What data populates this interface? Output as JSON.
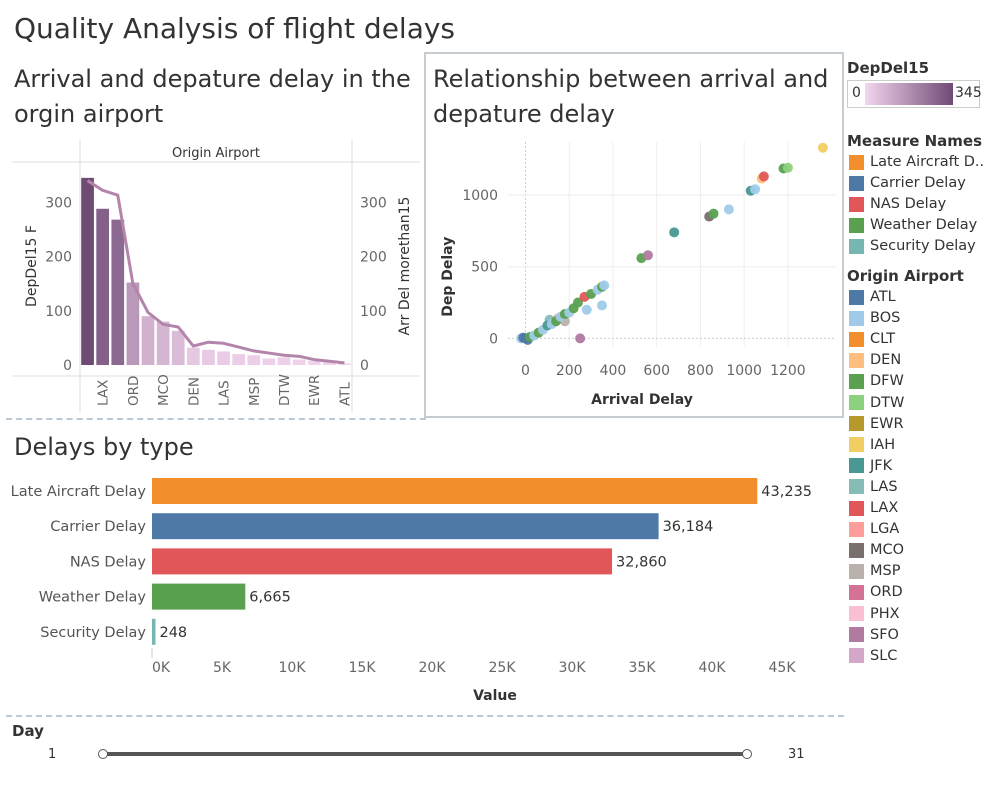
{
  "dashboard": {
    "title": "Quality Analysis of flight delays"
  },
  "worksheets": {
    "arr_dep": {
      "title": "Arrival and depature delay in the orgin airport"
    },
    "scatter": {
      "title": "Relationship between arrival and depature delay"
    },
    "types": {
      "title": "Delays by type"
    }
  },
  "legends": {
    "color_scale": {
      "title": "DepDel15",
      "min": "0",
      "max": "345",
      "colors": [
        "#f3d5ee",
        "#6f4a75"
      ]
    },
    "measure_names": {
      "title": "Measure Names",
      "items": [
        {
          "label": "Late Aircraft D..",
          "color": "#f28e2b"
        },
        {
          "label": "Carrier Delay",
          "color": "#4e79a7"
        },
        {
          "label": "NAS Delay",
          "color": "#e15759"
        },
        {
          "label": "Weather Delay",
          "color": "#59a14f"
        },
        {
          "label": "Security Delay",
          "color": "#76b7b2"
        }
      ]
    },
    "origin_airport": {
      "title": "Origin Airport",
      "items": [
        {
          "label": "ATL",
          "color": "#4e79a7"
        },
        {
          "label": "BOS",
          "color": "#a0cbe8"
        },
        {
          "label": "CLT",
          "color": "#f28e2b"
        },
        {
          "label": "DEN",
          "color": "#ffbe7d"
        },
        {
          "label": "DFW",
          "color": "#59a14f"
        },
        {
          "label": "DTW",
          "color": "#8cd17d"
        },
        {
          "label": "EWR",
          "color": "#b6992d"
        },
        {
          "label": "IAH",
          "color": "#f1ce63"
        },
        {
          "label": "JFK",
          "color": "#499894"
        },
        {
          "label": "LAS",
          "color": "#86bcb6"
        },
        {
          "label": "LAX",
          "color": "#e15759"
        },
        {
          "label": "LGA",
          "color": "#ff9d9a"
        },
        {
          "label": "MCO",
          "color": "#79706e"
        },
        {
          "label": "MSP",
          "color": "#bab0ac"
        },
        {
          "label": "ORD",
          "color": "#d37295"
        },
        {
          "label": "PHX",
          "color": "#fabfd2"
        },
        {
          "label": "SFO",
          "color": "#b07aa1"
        },
        {
          "label": "SLC",
          "color": "#d4a6c8"
        }
      ]
    }
  },
  "filter": {
    "title": "Day",
    "min": "1",
    "max": "31"
  },
  "chart_data": [
    {
      "type": "bar",
      "title": "Arrival and depature delay in the orgin airport",
      "header": "Origin Airport",
      "categories": [
        "",
        "LAX",
        "",
        "ORD",
        "",
        "MCO",
        "",
        "DEN",
        "",
        "LAS",
        "",
        "MSP",
        "",
        "DTW",
        "",
        "EWR",
        "",
        "ATL"
      ],
      "xlabels_visible": [
        "LAX",
        "ORD",
        "MCO",
        "DEN",
        "LAS",
        "MSP",
        "DTW",
        "EWR",
        "ATL"
      ],
      "series": [
        {
          "name": "DepDel15",
          "kind": "bar",
          "values": [
            345,
            288,
            268,
            152,
            90,
            80,
            63,
            32,
            28,
            25,
            20,
            18,
            12,
            14,
            10,
            8,
            6,
            3
          ]
        },
        {
          "name": "Arr Del morethan15",
          "kind": "line",
          "values": [
            340,
            322,
            313,
            150,
            97,
            75,
            70,
            35,
            42,
            40,
            33,
            26,
            22,
            18,
            16,
            10,
            7,
            4
          ]
        }
      ],
      "ylabel": "DepDel15 F",
      "y2label": "Arr Del morethan15",
      "ylim": [
        0,
        365
      ],
      "yticks": [
        0,
        100,
        200,
        300
      ],
      "grid": false
    },
    {
      "type": "scatter",
      "title": "Relationship between arrival and depature delay",
      "xlabel": "Arrival Delay",
      "ylabel": "Dep Delay",
      "xlim": [
        -80,
        1420
      ],
      "ylim": [
        -60,
        1370
      ],
      "xticks": [
        0,
        200,
        400,
        600,
        800,
        1000,
        1200
      ],
      "yticks": [
        0,
        500,
        1000
      ],
      "grid": true,
      "points": [
        {
          "x": 1360,
          "y": 1330,
          "airport": "IAH"
        },
        {
          "x": 1200,
          "y": 1190,
          "airport": "DTW"
        },
        {
          "x": 1180,
          "y": 1185,
          "airport": "DFW"
        },
        {
          "x": 1090,
          "y": 1130,
          "airport": "LAX"
        },
        {
          "x": 1080,
          "y": 1115,
          "airport": "DEN"
        },
        {
          "x": 1050,
          "y": 1040,
          "airport": "BOS"
        },
        {
          "x": 1030,
          "y": 1030,
          "airport": "JFK"
        },
        {
          "x": 930,
          "y": 900,
          "airport": "BOS"
        },
        {
          "x": 860,
          "y": 870,
          "airport": "DFW"
        },
        {
          "x": 840,
          "y": 850,
          "airport": "MCO"
        },
        {
          "x": 680,
          "y": 740,
          "airport": "JFK"
        },
        {
          "x": 560,
          "y": 580,
          "airport": "SFO"
        },
        {
          "x": 530,
          "y": 560,
          "airport": "DFW"
        },
        {
          "x": 360,
          "y": 370,
          "airport": "BOS"
        },
        {
          "x": 350,
          "y": 360,
          "airport": "DFW"
        },
        {
          "x": 330,
          "y": 340,
          "airport": "BOS"
        },
        {
          "x": 300,
          "y": 310,
          "airport": "DFW"
        },
        {
          "x": 270,
          "y": 290,
          "airport": "LAX"
        },
        {
          "x": 350,
          "y": 230,
          "airport": "BOS"
        },
        {
          "x": 250,
          "y": 0,
          "airport": "SFO"
        },
        {
          "x": 280,
          "y": 200,
          "airport": "BOS"
        },
        {
          "x": 240,
          "y": 250,
          "airport": "DFW"
        },
        {
          "x": 220,
          "y": 210,
          "airport": "DFW"
        },
        {
          "x": 200,
          "y": 180,
          "airport": "BOS"
        },
        {
          "x": 180,
          "y": 170,
          "airport": "DFW"
        },
        {
          "x": 160,
          "y": 150,
          "airport": "BOS"
        },
        {
          "x": 140,
          "y": 120,
          "airport": "DFW"
        },
        {
          "x": 120,
          "y": 100,
          "airport": "BOS"
        },
        {
          "x": 100,
          "y": 90,
          "airport": "JFK"
        },
        {
          "x": 80,
          "y": 60,
          "airport": "BOS"
        },
        {
          "x": 60,
          "y": 40,
          "airport": "DFW"
        },
        {
          "x": 40,
          "y": 20,
          "airport": "BOS"
        },
        {
          "x": 20,
          "y": 10,
          "airport": "DFW"
        },
        {
          "x": 0,
          "y": 0,
          "airport": "ATL"
        },
        {
          "x": -10,
          "y": 5,
          "airport": "ATL"
        },
        {
          "x": -20,
          "y": 0,
          "airport": "BOS"
        },
        {
          "x": 10,
          "y": -10,
          "airport": "ATL"
        },
        {
          "x": 150,
          "y": 140,
          "airport": "LGA"
        },
        {
          "x": 180,
          "y": 120,
          "airport": "MSP"
        },
        {
          "x": 110,
          "y": 130,
          "airport": "LAS"
        }
      ]
    },
    {
      "type": "bar",
      "orientation": "horizontal",
      "title": "Delays by type",
      "categories": [
        "Late Aircraft Delay",
        "Carrier Delay",
        "NAS Delay",
        "Weather Delay",
        "Security Delay"
      ],
      "values": [
        43235,
        36184,
        32860,
        6665,
        248
      ],
      "labels": [
        "43,235",
        "36,184",
        "32,860",
        "6,665",
        "248"
      ],
      "colors": [
        "#f28e2b",
        "#4e79a7",
        "#e15759",
        "#59a14f",
        "#76b7b2"
      ],
      "xlabel": "Value",
      "xlim": [
        0,
        49000
      ],
      "xticks": [
        0,
        5000,
        10000,
        15000,
        20000,
        25000,
        30000,
        35000,
        40000,
        45000
      ],
      "xticklabels": [
        "0K",
        "5K",
        "10K",
        "15K",
        "20K",
        "25K",
        "30K",
        "35K",
        "40K",
        "45K"
      ]
    }
  ]
}
